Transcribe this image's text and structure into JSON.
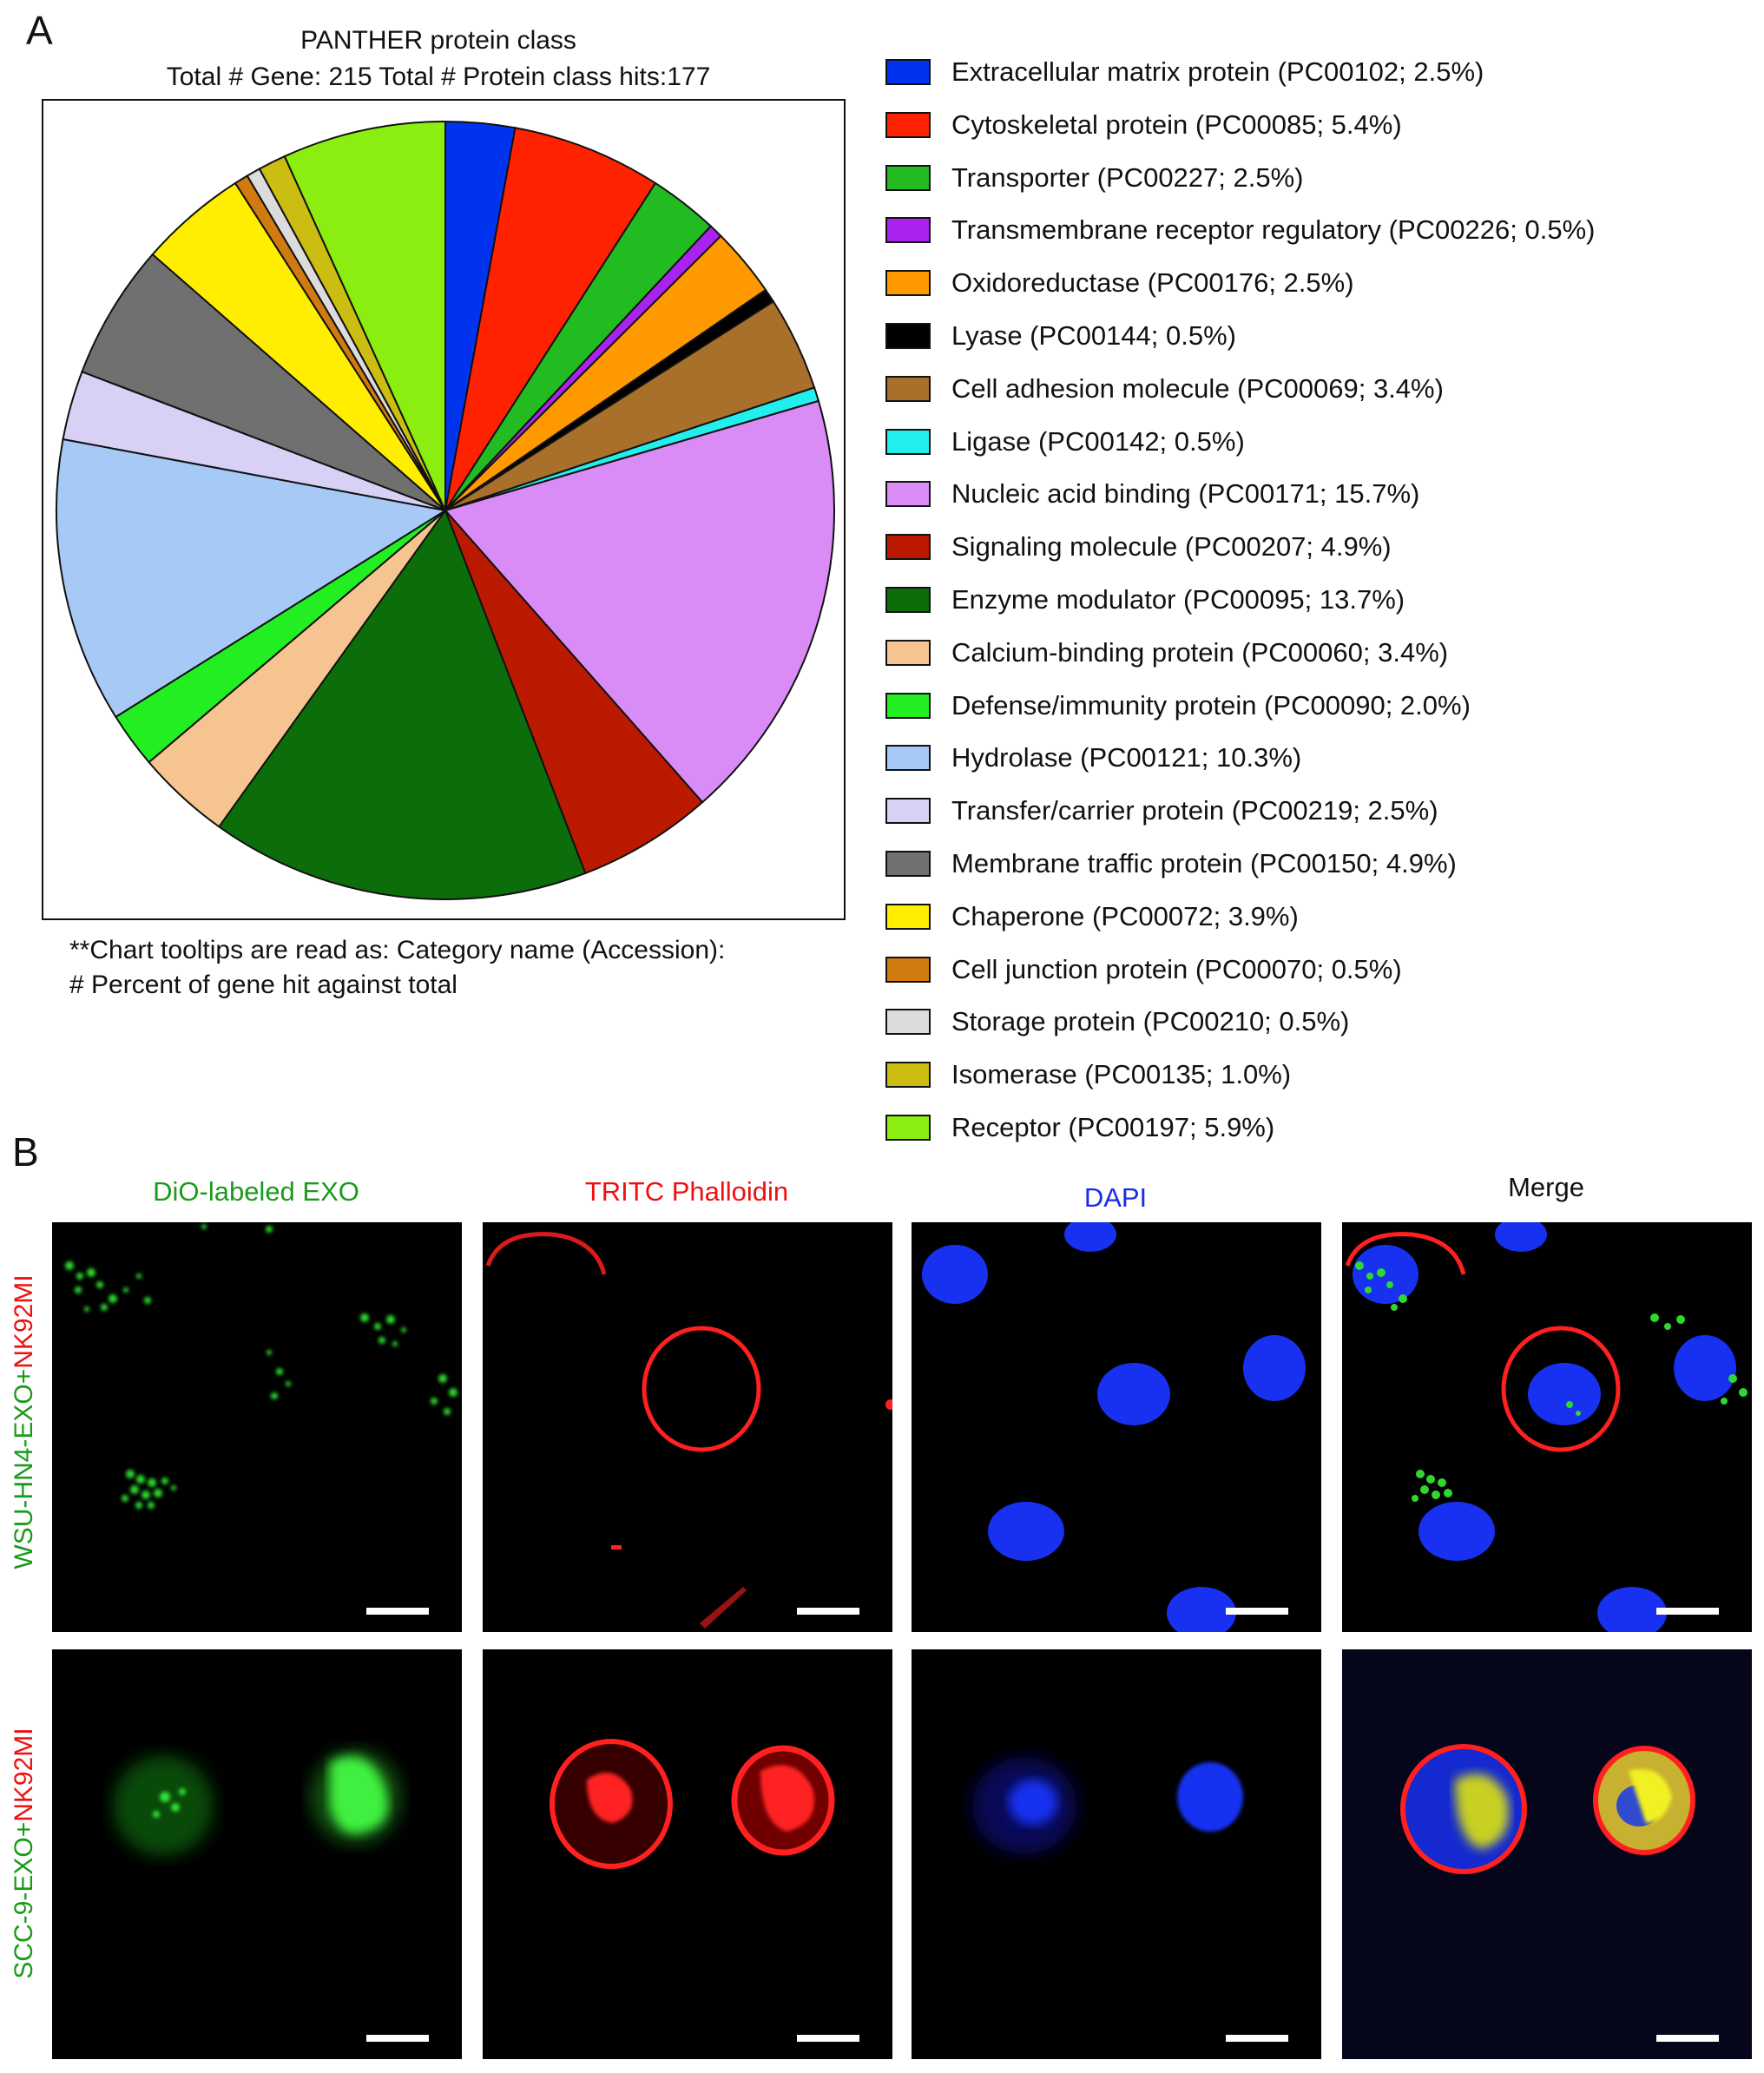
{
  "panel_a": {
    "letter": "A",
    "title_line1": "PANTHER protein class",
    "title_line2": "Total # Gene: 215  Total # Protein class hits:177",
    "note_line1": "**Chart tooltips are read as: Category name (Accession):",
    "note_line2": "# Percent of gene hit against total"
  },
  "chart_data": {
    "type": "pie",
    "title": "PANTHER protein class",
    "subtitle": "Total # Gene: 215  Total # Protein class hits:177",
    "start": "12 o'clock",
    "direction": "clockwise",
    "legend_position": "right",
    "slices": [
      {
        "label": "Extracellular matrix protein (PC00102; 2.5%)",
        "value": 2.5,
        "color": "#0033ee"
      },
      {
        "label": "Cytoskeletal protein (PC00085; 5.4%)",
        "value": 5.4,
        "color": "#ff2200"
      },
      {
        "label": "Transporter (PC00227; 2.5%)",
        "value": 2.5,
        "color": "#22bb22"
      },
      {
        "label": "Transmembrane receptor regulatory (PC00226; 0.5%)",
        "value": 0.5,
        "color": "#aa22ee"
      },
      {
        "label": "Oxidoreductase (PC00176; 2.5%)",
        "value": 2.5,
        "color": "#ff9900"
      },
      {
        "label": "Lyase (PC00144; 0.5%)",
        "value": 0.5,
        "color": "#000000"
      },
      {
        "label": "Cell adhesion molecule (PC00069; 3.4%)",
        "value": 3.4,
        "color": "#a8702a"
      },
      {
        "label": "Ligase (PC00142; 0.5%)",
        "value": 0.5,
        "color": "#22eeee"
      },
      {
        "label": "Nucleic acid binding (PC00171; 15.7%)",
        "value": 15.7,
        "color": "#d98cf5"
      },
      {
        "label": "Signaling molecule (PC00207; 4.9%)",
        "value": 4.9,
        "color": "#bb1a00"
      },
      {
        "label": "Enzyme modulator (PC00095; 13.7%)",
        "value": 13.7,
        "color": "#0b6e0b"
      },
      {
        "label": "Calcium-binding protein (PC00060; 3.4%)",
        "value": 3.4,
        "color": "#f5c490"
      },
      {
        "label": "Defense/immunity protein (PC00090; 2.0%)",
        "value": 2.0,
        "color": "#22ee22"
      },
      {
        "label": "Hydrolase (PC00121; 10.3%)",
        "value": 10.3,
        "color": "#a6caf5"
      },
      {
        "label": "Transfer/carrier protein (PC00219; 2.5%)",
        "value": 2.5,
        "color": "#d8d0f5"
      },
      {
        "label": "Membrane traffic protein (PC00150; 4.9%)",
        "value": 4.9,
        "color": "#707070"
      },
      {
        "label": "Chaperone (PC00072; 3.9%)",
        "value": 3.9,
        "color": "#ffee00"
      },
      {
        "label": "Cell junction protein (PC00070; 0.5%)",
        "value": 0.5,
        "color": "#d07a10"
      },
      {
        "label": "Storage protein (PC00210; 0.5%)",
        "value": 0.5,
        "color": "#dcdcdc"
      },
      {
        "label": "Isomerase (PC00135; 1.0%)",
        "value": 1.0,
        "color": "#cbbd12"
      },
      {
        "label": "Receptor (PC00197; 5.9%)",
        "value": 5.9,
        "color": "#8cee10"
      }
    ]
  },
  "panel_b": {
    "letter": "B",
    "columns": [
      {
        "label": "DiO-labeled EXO",
        "color": "#1a9a1a"
      },
      {
        "label": "TRITC Phalloidin",
        "color": "#ee1111"
      },
      {
        "label": "DAPI",
        "color": "#1a2aee"
      },
      {
        "label": "Merge",
        "color": "#111111"
      }
    ],
    "rows": [
      {
        "label_part1": "WSU-HN4-EXO+",
        "label_part2": "NK92MI"
      },
      {
        "label_part1": "SCC-9-EXO+",
        "label_part2": "NK92MI"
      }
    ],
    "label_colors": {
      "green": "#1a9a1a",
      "red": "#ee1111"
    }
  }
}
